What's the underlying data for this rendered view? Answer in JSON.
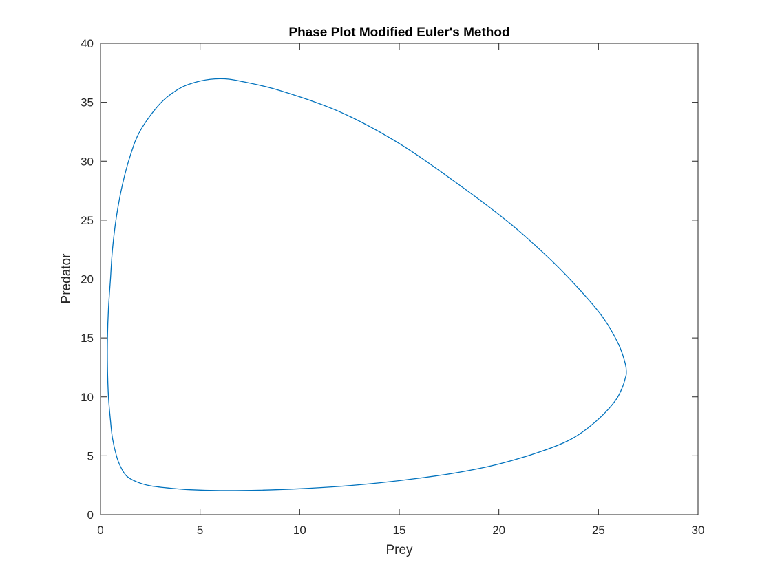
{
  "chart_data": {
    "type": "line",
    "title": "Phase Plot Modified Euler's Method",
    "xlabel": "Prey",
    "ylabel": "Predator",
    "xlim": [
      0,
      30
    ],
    "ylim": [
      0,
      40
    ],
    "xticks": [
      0,
      5,
      10,
      15,
      20,
      25,
      30
    ],
    "yticks": [
      0,
      5,
      10,
      15,
      20,
      25,
      30,
      35,
      40
    ],
    "grid": false,
    "legend": "none",
    "series": [
      {
        "color": "#0072bd",
        "x": [
          6.0,
          5.0,
          4.0,
          3.0,
          2.0,
          1.5,
          1.1,
          0.8,
          0.6,
          0.5,
          0.4,
          0.35,
          0.35,
          0.4,
          0.5,
          0.6,
          0.8,
          1.0,
          1.3,
          1.8,
          2.5,
          3.5,
          4.5,
          6.0,
          8.0,
          10.0,
          12.0,
          14.0,
          16.0,
          18.0,
          20.0,
          22.0,
          23.5,
          24.5,
          25.3,
          25.9,
          26.2,
          26.35,
          26.4,
          26.35,
          26.0,
          25.2,
          24.0,
          22.5,
          20.5,
          18.0,
          15.0,
          12.0,
          9.0,
          7.0,
          6.0
        ],
        "y": [
          37.0,
          36.8,
          36.2,
          34.9,
          32.6,
          30.5,
          28.0,
          25.3,
          22.5,
          20.0,
          17.5,
          15.0,
          12.5,
          10.0,
          8.0,
          6.5,
          5.0,
          4.1,
          3.3,
          2.8,
          2.45,
          2.25,
          2.12,
          2.05,
          2.08,
          2.2,
          2.4,
          2.7,
          3.1,
          3.6,
          4.3,
          5.3,
          6.3,
          7.4,
          8.6,
          9.8,
          10.8,
          11.6,
          12.0,
          12.8,
          14.5,
          16.8,
          19.2,
          21.8,
          24.8,
          28.0,
          31.5,
          34.2,
          36.0,
          36.8,
          37.0
        ]
      }
    ]
  }
}
